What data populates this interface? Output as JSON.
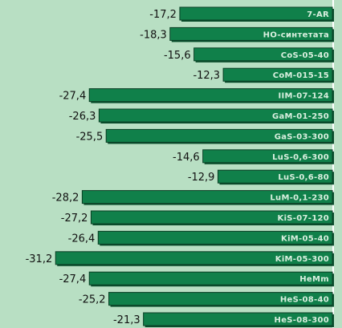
{
  "chart_data": {
    "type": "bar",
    "orientation": "horizontal",
    "categories": [
      "7-AR",
      "HO-синтетата",
      "CoS-05-40",
      "CoM-015-15",
      "IIM-07-124",
      "GaM-01-250",
      "GaS-03-300",
      "LuS-0,6-300",
      "LuS-0,6-80",
      "LuM-0,1-230",
      "KiS-07-120",
      "KiM-05-40",
      "KiM-05-300",
      "HeMm",
      "HeS-08-40",
      "HeS-08-300"
    ],
    "values": [
      -17.2,
      -18.3,
      -15.6,
      -12.3,
      -27.4,
      -26.3,
      -25.5,
      -14.6,
      -12.9,
      -28.2,
      -27.2,
      -26.4,
      -31.2,
      -27.4,
      -25.2,
      -21.3
    ],
    "value_labels": [
      "-17,2",
      "-18,3",
      "-15,6",
      "-12,3",
      "-27,4",
      "-26,3",
      "-25,5",
      "-14,6",
      "-12,9",
      "-28,2",
      "-27,2",
      "-26,4",
      "-31,2",
      "-27,4",
      "-25,2",
      "-21,3"
    ],
    "grid": false,
    "colors": {
      "background": "#b8dfc3",
      "bar": "#10804a",
      "bar_dark": "#0a4f2d",
      "baseline": "#ffffff"
    }
  }
}
